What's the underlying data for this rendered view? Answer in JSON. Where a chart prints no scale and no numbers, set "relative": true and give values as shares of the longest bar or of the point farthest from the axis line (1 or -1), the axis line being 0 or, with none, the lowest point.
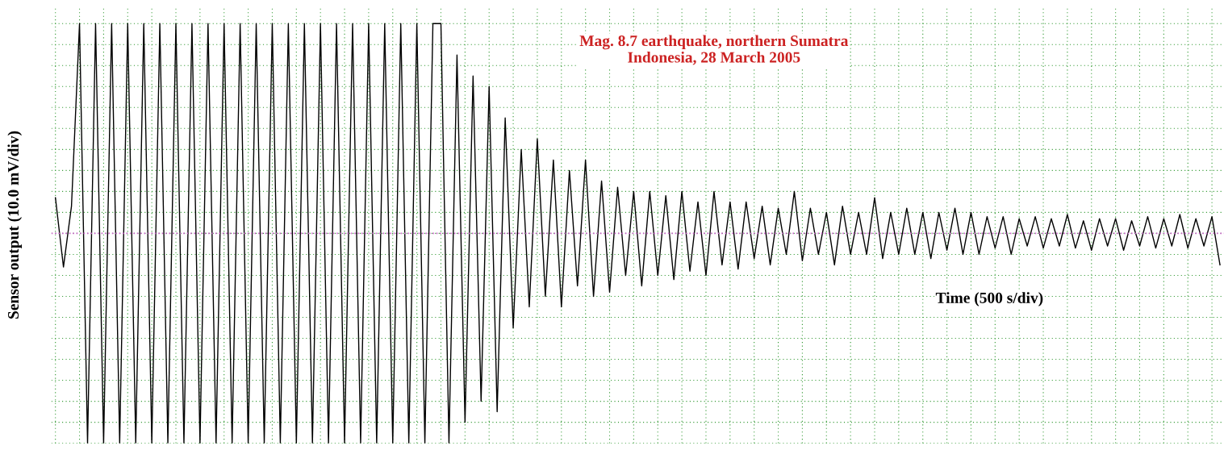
{
  "chart_data": {
    "type": "line",
    "relative": true,
    "title": "Mag. 8.7 earthquake, northern Sumatra\nIndonesia, 28 March 2005",
    "xlabel": "Time (500 s/div)",
    "ylabel": "Sensor output (10.0 mV/div)",
    "grid": true,
    "marker": "none",
    "line_style": "solid",
    "categories": [
      null,
      null,
      null,
      null,
      null,
      null,
      null,
      null,
      null,
      null,
      null,
      null,
      null,
      null,
      null,
      null,
      null,
      null,
      null,
      null,
      null,
      null,
      null,
      null,
      null,
      null,
      null,
      null,
      null,
      null,
      null,
      null,
      null,
      null,
      null,
      null,
      null,
      null,
      null,
      null,
      null,
      null,
      null,
      null,
      null,
      null,
      null,
      null,
      null,
      null,
      null,
      null,
      null,
      null,
      null,
      null,
      null,
      null,
      null,
      null,
      null,
      null,
      null,
      null,
      null,
      null,
      null,
      null,
      null,
      null,
      null,
      null,
      null,
      null,
      null,
      null,
      null,
      null,
      null,
      null,
      null,
      null,
      null,
      null,
      null,
      null,
      null,
      null,
      null,
      null,
      null,
      null,
      null,
      null,
      null,
      null,
      null,
      null,
      null,
      null,
      null,
      null,
      null,
      null,
      null,
      null,
      null,
      null,
      null,
      null,
      null,
      null,
      null,
      null,
      null,
      null,
      null,
      null,
      null,
      null,
      null,
      null,
      null,
      null,
      null,
      null,
      null,
      null,
      null,
      null,
      null,
      null,
      null,
      null,
      null,
      null,
      null,
      null,
      null,
      null,
      null,
      null,
      null,
      null,
      null,
      null
    ],
    "ref_lines": [
      {
        "axis": "y",
        "value": 0,
        "color": "#cc66cc",
        "line_style": "dotted"
      }
    ],
    "series": [
      {
        "color": "#000000",
        "values": [
          0.17,
          -0.16,
          0.13,
          1,
          -1,
          1,
          -1,
          1,
          -1,
          1,
          -1,
          1,
          -1,
          1,
          -1,
          1,
          -1,
          1,
          -1,
          1,
          -1,
          1,
          -1,
          1,
          -1,
          1,
          -1,
          1,
          -1,
          1,
          -1,
          1,
          -1,
          1,
          -1,
          1,
          -1,
          1,
          -1,
          1,
          -1,
          1,
          -1,
          1,
          -1,
          1,
          -1,
          1,
          1,
          -1,
          0.85,
          -0.9,
          0.75,
          -0.8,
          0.7,
          -0.85,
          0.55,
          -0.45,
          0.4,
          -0.35,
          0.45,
          -0.3,
          0.35,
          -0.35,
          0.3,
          -0.25,
          0.35,
          -0.3,
          0.25,
          -0.28,
          0.22,
          -0.2,
          0.2,
          -0.25,
          0.2,
          -0.2,
          0.18,
          -0.22,
          0.2,
          -0.18,
          0.15,
          -0.2,
          0.2,
          -0.15,
          0.15,
          -0.17,
          0.15,
          -0.12,
          0.13,
          -0.15,
          0.12,
          -0.1,
          0.2,
          -0.13,
          0.12,
          -0.1,
          0.1,
          -0.15,
          0.13,
          -0.1,
          0.1,
          -0.1,
          0.17,
          -0.12,
          0.1,
          -0.1,
          0.12,
          -0.1,
          0.1,
          -0.12,
          0.1,
          -0.08,
          0.12,
          -0.1,
          0.1,
          -0.1,
          0.08,
          -0.07,
          0.08,
          -0.1,
          0.07,
          -0.06,
          0.08,
          -0.07,
          0.07,
          -0.06,
          0.09,
          -0.07,
          0.06,
          -0.08,
          0.07,
          -0.06,
          0.07,
          -0.08,
          0.06,
          -0.06,
          0.08,
          -0.07,
          0.07,
          -0.06,
          0.09,
          -0.07,
          0.07,
          -0.06,
          0.08,
          -0.15
        ]
      }
    ]
  }
}
